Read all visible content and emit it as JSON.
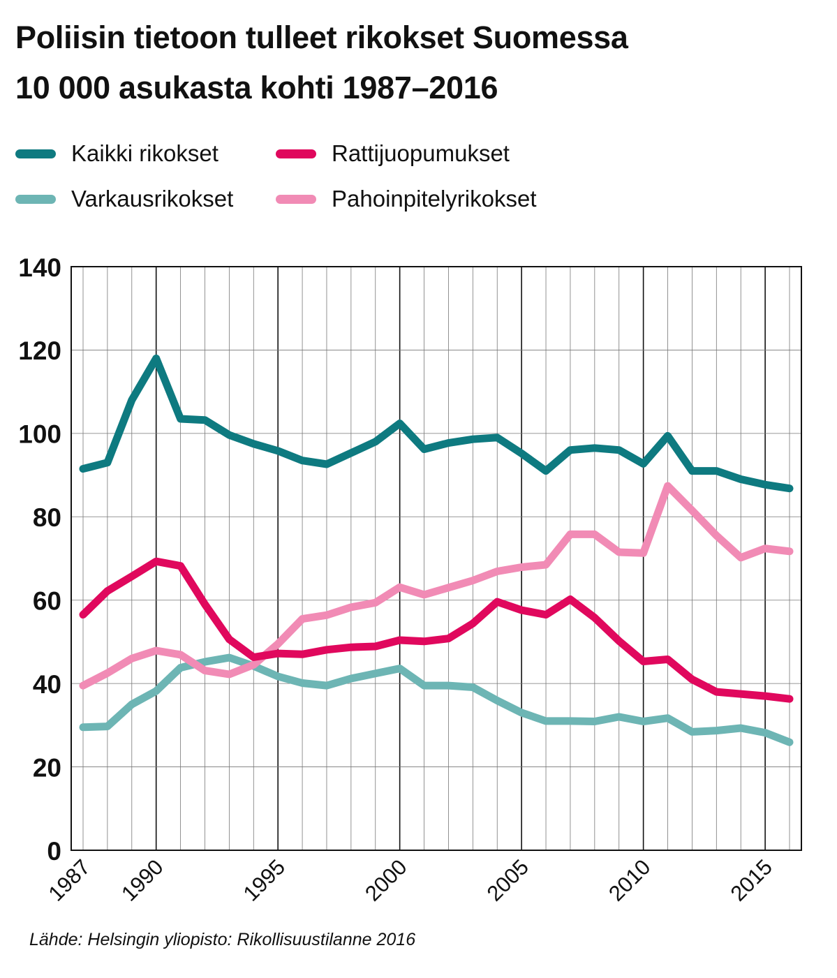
{
  "title_line1": "Poliisin tietoon tulleet rikokset Suomessa",
  "title_line2": "10 000 asukasta kohti 1987–2016",
  "source": "Lähde: Helsingin yliopisto: Rikollisuustilanne 2016",
  "chart_data": {
    "type": "line",
    "x": [
      1987,
      1988,
      1989,
      1990,
      1991,
      1992,
      1993,
      1994,
      1995,
      1996,
      1997,
      1998,
      1999,
      2000,
      2001,
      2002,
      2003,
      2004,
      2005,
      2006,
      2007,
      2008,
      2009,
      2010,
      2011,
      2012,
      2013,
      2014,
      2015,
      2016
    ],
    "xticks": [
      "1987",
      "1990",
      "1995",
      "2000",
      "2005",
      "2010",
      "2015"
    ],
    "yticks": [
      "0",
      "20",
      "40",
      "60",
      "80",
      "100",
      "120",
      "140"
    ],
    "ylim": [
      0,
      140
    ],
    "grid": true,
    "legend_position": "top-left",
    "series": [
      {
        "name": "Kaikki rikokset",
        "color": "#0e7a80",
        "values": [
          91.5,
          93,
          108,
          118,
          103.5,
          103.2,
          99.6,
          97.5,
          95.8,
          93.5,
          92.6,
          95.3,
          98,
          102.4,
          96.2,
          97.7,
          98.6,
          99,
          95.2,
          91,
          96,
          96.5,
          96,
          92.7,
          99.4,
          91,
          91,
          89,
          87.7,
          86.8
        ]
      },
      {
        "name": "Rattijuopumukset",
        "color": "#e0085d",
        "values": [
          56.5,
          62.2,
          65.7,
          69.3,
          68.2,
          59,
          50.6,
          46.3,
          47.2,
          47,
          48.1,
          48.7,
          48.9,
          50.4,
          50.1,
          50.8,
          54.4,
          59.6,
          57.6,
          56.5,
          60.2,
          55.8,
          50.2,
          45.3,
          45.8,
          41,
          38,
          37.5,
          37,
          36.3
        ]
      },
      {
        "name": "Varkausrikokset",
        "color": "#6db5b4",
        "values": [
          29.5,
          29.7,
          35,
          38.2,
          43.8,
          45.2,
          46.2,
          44.2,
          41.7,
          40.1,
          39.5,
          41.2,
          42.4,
          43.6,
          39.5,
          39.5,
          39.1,
          35.9,
          33,
          31,
          31,
          30.9,
          32,
          30.9,
          31.7,
          28.4,
          28.7,
          29.3,
          28.2,
          25.9
        ]
      },
      {
        "name": "Pahoinpitelyrikokset",
        "color": "#f18bb5",
        "values": [
          39.5,
          42.5,
          46,
          47.9,
          46.9,
          43.1,
          42.2,
          44.5,
          49.5,
          55.5,
          56.4,
          58.3,
          59.4,
          63.1,
          61.3,
          63,
          64.7,
          66.9,
          67.9,
          68.5,
          75.8,
          75.8,
          71.5,
          71.3,
          87.4,
          81.5,
          75.5,
          70.2,
          72.4,
          71.7
        ]
      }
    ]
  }
}
